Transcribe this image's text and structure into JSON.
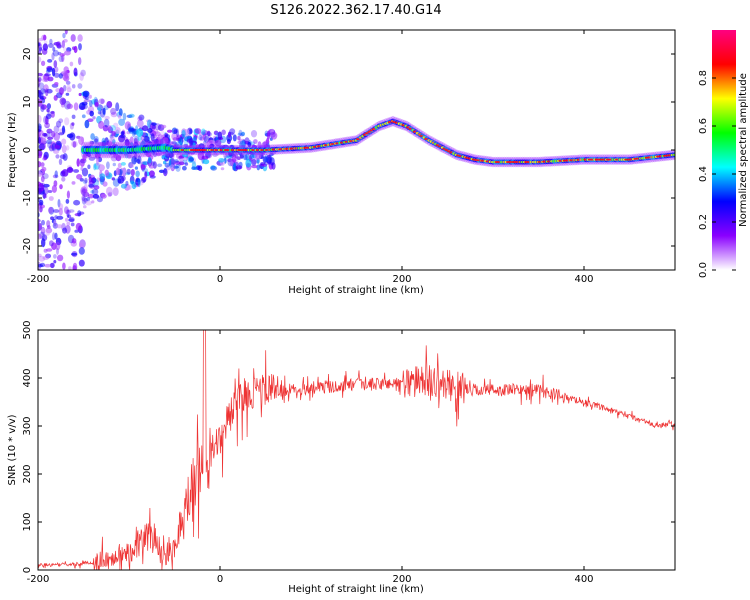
{
  "figure": {
    "title": "S126.2022.362.17.40.G14"
  },
  "chart_data": [
    {
      "type": "heatmap",
      "xlabel": "Height of straight line (km)",
      "ylabel": "Frequency (Hz)",
      "xlim": [
        -200,
        500
      ],
      "ylim": [
        -25,
        25
      ],
      "x_ticks": [
        -200,
        0,
        200,
        400
      ],
      "y_ticks": [
        -20,
        -10,
        0,
        10,
        20
      ],
      "grid": false,
      "colorbar": {
        "label": "Normalized spectral amplitude",
        "range": [
          0,
          1
        ],
        "ticks": [
          0.0,
          0.2,
          0.4,
          0.6,
          0.8
        ],
        "colors": [
          "#ffffff",
          "#8a00ff",
          "#0000ff",
          "#00ffff",
          "#00ff00",
          "#ffff00",
          "#ff0000",
          "#ff0080"
        ]
      },
      "ridge_frequency_trend": {
        "height_km": [
          -200,
          -150,
          -100,
          -60,
          -50,
          0,
          50,
          100,
          150,
          175,
          190,
          205,
          230,
          260,
          280,
          300,
          350,
          400,
          450,
          500
        ],
        "frequency_hz": [
          0,
          0,
          0,
          0.5,
          0,
          0,
          0,
          0.5,
          2,
          5,
          6,
          5,
          2,
          -1,
          -2,
          -2.5,
          -2.5,
          -2,
          -2,
          -1
        ]
      }
    },
    {
      "type": "line",
      "xlabel": "Height of straight line (km)",
      "ylabel": "SNR (10 * v/v)",
      "xlim": [
        -200,
        500
      ],
      "ylim": [
        0,
        500
      ],
      "x_ticks": [
        -200,
        0,
        200,
        400
      ],
      "y_ticks": [
        0,
        100,
        200,
        300,
        400,
        500
      ],
      "grid": false,
      "series_color": "#ee3333",
      "series": [
        {
          "x": [
            -200,
            -160,
            -140,
            -120,
            -100,
            -80,
            -70,
            -60,
            -50,
            -40,
            -30,
            -20,
            -10,
            0,
            10,
            20,
            30,
            50,
            80,
            100,
            150,
            200,
            230,
            250,
            280,
            300,
            350,
            400,
            450,
            480,
            500
          ],
          "y": [
            10,
            12,
            15,
            25,
            40,
            70,
            60,
            30,
            50,
            120,
            180,
            220,
            240,
            270,
            320,
            350,
            370,
            375,
            375,
            380,
            385,
            390,
            395,
            385,
            375,
            375,
            375,
            350,
            320,
            300,
            305
          ]
        }
      ]
    }
  ]
}
